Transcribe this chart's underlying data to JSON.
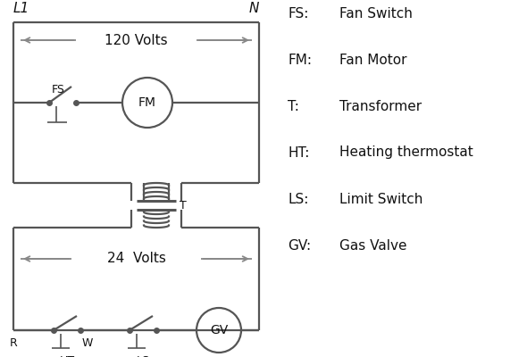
{
  "background_color": "#ffffff",
  "line_color": "#555555",
  "line_width": 1.6,
  "text_color": "#111111",
  "legend_items": [
    [
      "FS:",
      "Fan Switch"
    ],
    [
      "FM:",
      "Fan Motor"
    ],
    [
      "T:",
      "Transformer"
    ],
    [
      "HT:",
      "Heating thermostat"
    ],
    [
      "LS:",
      "Limit Switch"
    ],
    [
      "GV:",
      "Gas Valve"
    ]
  ],
  "L1_label": "L1",
  "N_label": "N",
  "volts120_label": "120 Volts",
  "volts24_label": "24  Volts",
  "T_label": "T",
  "FS_label": "FS",
  "FM_label": "FM",
  "GV_label": "GV",
  "R_label": "R",
  "W_label": "W",
  "HT_label": "HT",
  "LS_label": "LS"
}
